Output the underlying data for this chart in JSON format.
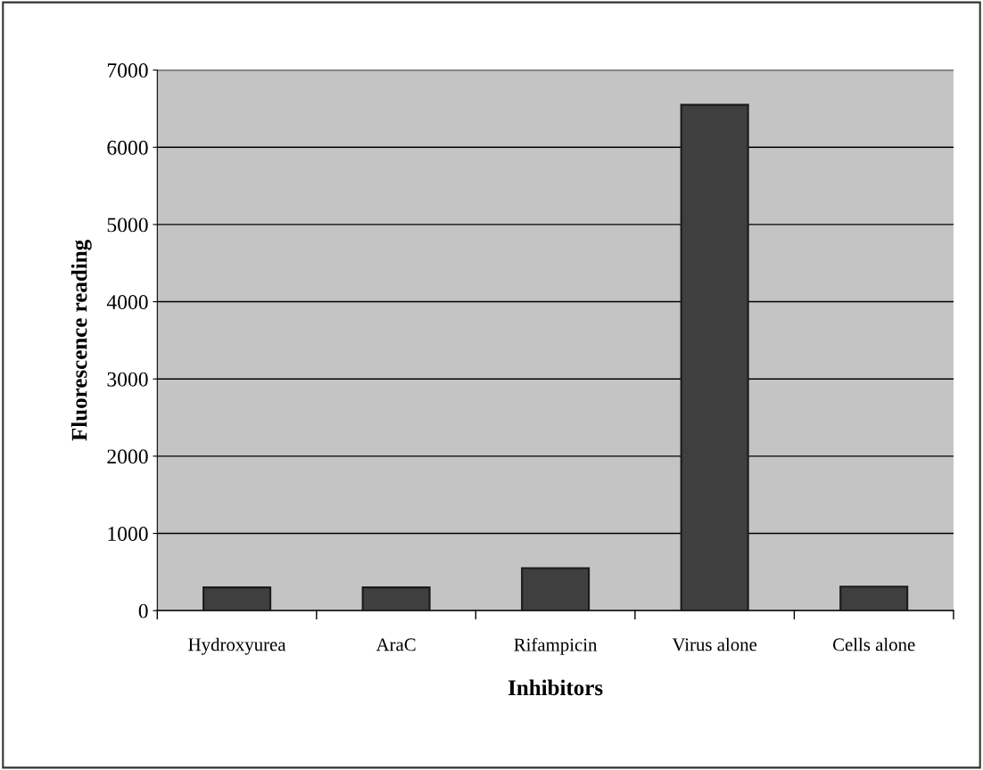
{
  "chart_data": {
    "type": "bar",
    "xlabel": "Inhibitors",
    "ylabel": "Fluorescence reading",
    "categories": [
      "Hydroxyurea",
      "AraC",
      "Rifampicin",
      "Virus alone",
      "Cells alone"
    ],
    "values": [
      300,
      300,
      550,
      6550,
      310
    ],
    "color": "#3f3f3f",
    "ylim": [
      0,
      7000
    ],
    "yticks": [
      0,
      1000,
      2000,
      3000,
      4000,
      5000,
      6000,
      7000
    ],
    "grid": "y",
    "legend": false
  }
}
